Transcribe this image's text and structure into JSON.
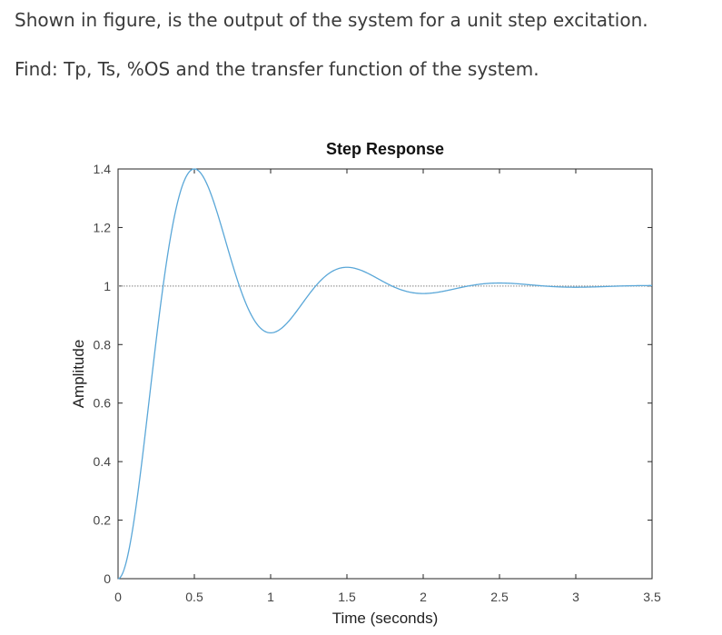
{
  "question": {
    "line1": "Shown in figure, is the output of the system for a unit step excitation.",
    "line2": "Find: Tp, Ts, %OS and the transfer function of the system."
  },
  "chart_data": {
    "type": "line",
    "title": "Step Response",
    "xlabel": "Time (seconds)",
    "ylabel": "Amplitude",
    "xlim": [
      0,
      3.5
    ],
    "ylim": [
      0,
      1.4
    ],
    "xticks": [
      "0",
      "0.5",
      "1",
      "1.5",
      "2",
      "2.5",
      "3",
      "3.5"
    ],
    "yticks": [
      "0",
      "0.2",
      "0.4",
      "0.6",
      "0.8",
      "1",
      "1.2",
      "1.4"
    ],
    "xtick_values": [
      0,
      0.5,
      1,
      1.5,
      2,
      2.5,
      3,
      3.5
    ],
    "ytick_values": [
      0,
      0.2,
      0.4,
      0.6,
      0.8,
      1,
      1.2,
      1.4
    ],
    "reference_line": {
      "y": 1,
      "style": "dotted"
    },
    "series": [
      {
        "color": "#5aa7d8",
        "model": {
          "final_value": 1,
          "peak_time": 0.5,
          "overshoot_percent": 40
        },
        "peak": {
          "x": 0.5,
          "y": 1.4
        }
      }
    ]
  }
}
